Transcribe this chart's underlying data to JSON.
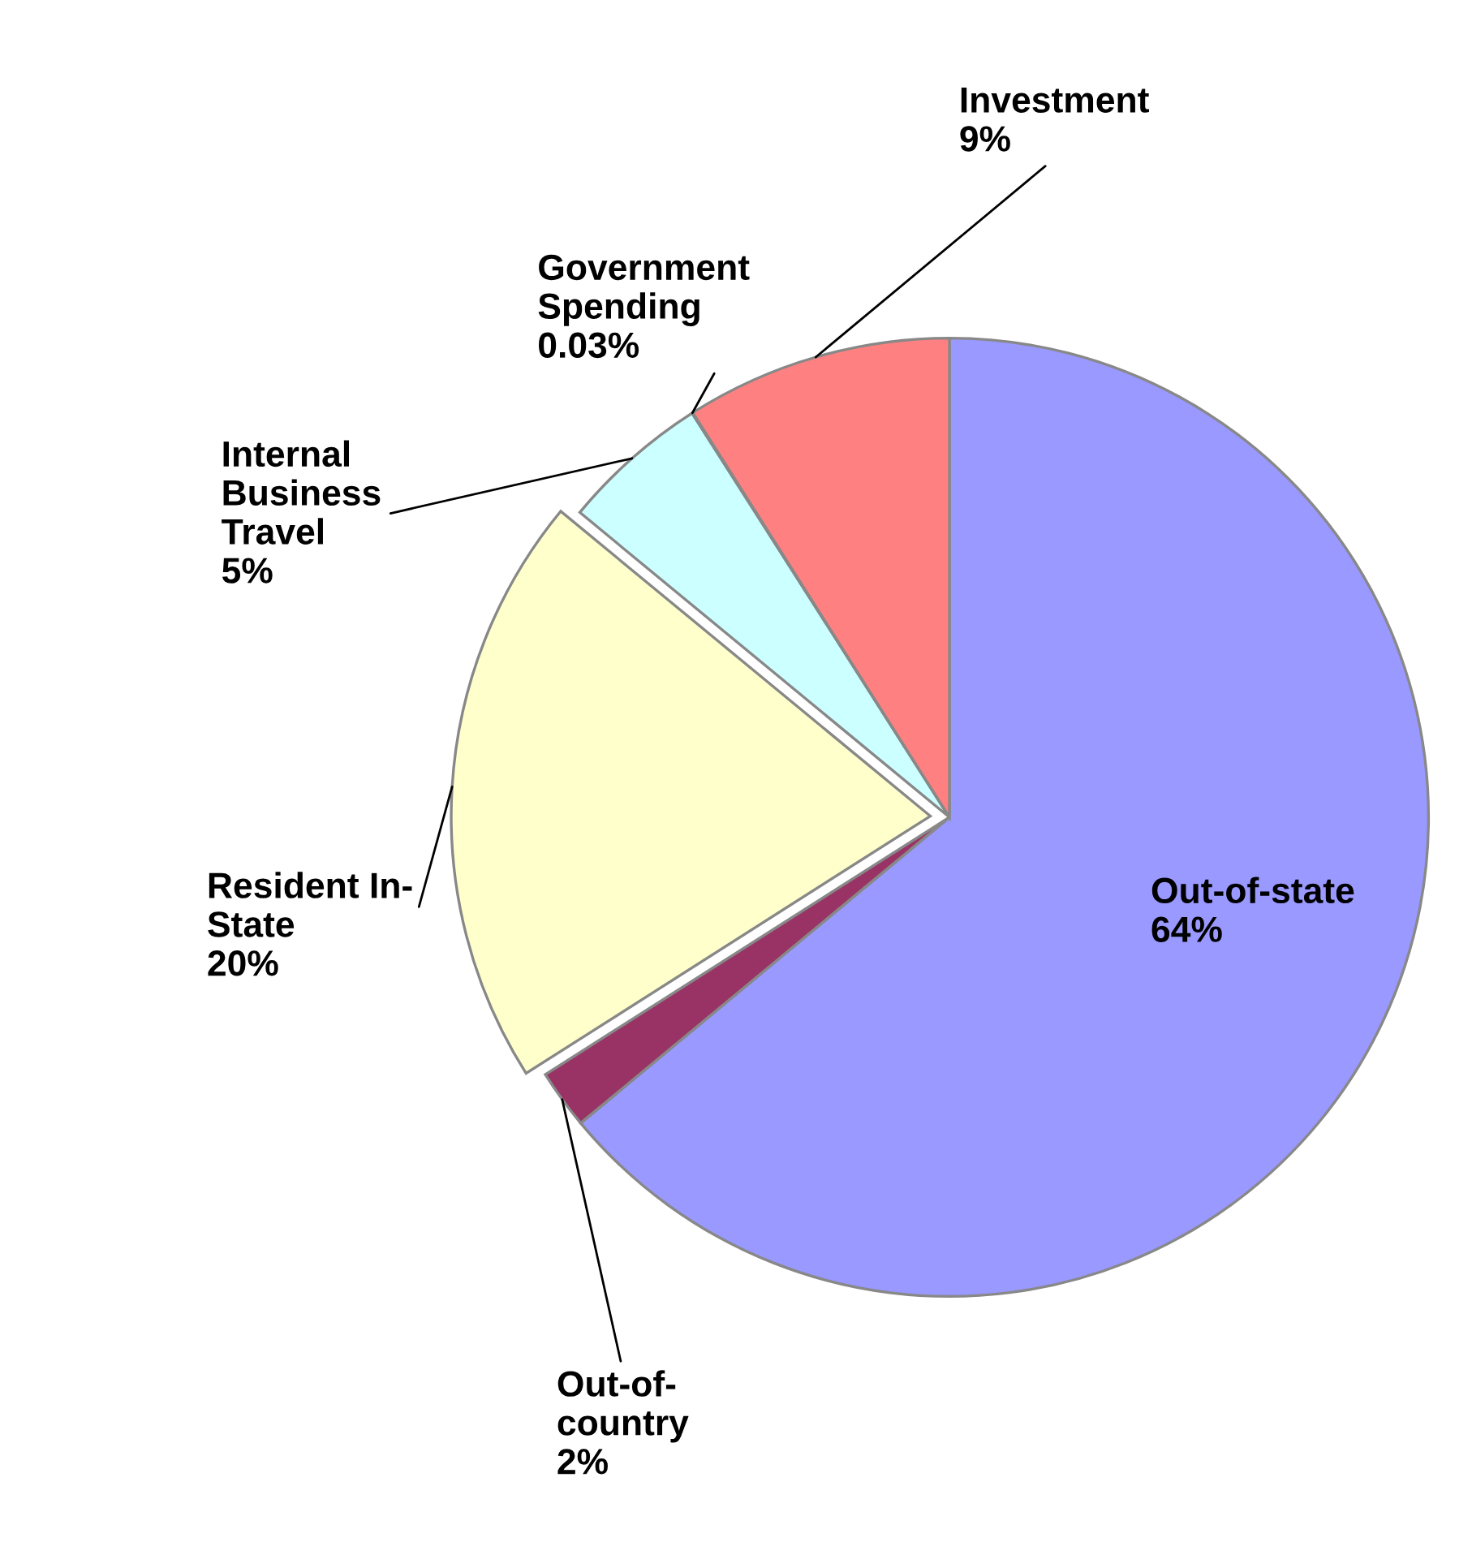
{
  "chart_data": {
    "type": "pie",
    "categories": [
      "Out-of-state",
      "Out-of-country",
      "Resident In-State",
      "Internal Business Travel",
      "Government Spending",
      "Investment"
    ],
    "values": [
      64,
      2,
      20,
      5,
      0.03,
      9
    ],
    "value_labels": [
      "64%",
      "2%",
      "20%",
      "5%",
      "0.03%",
      "9%"
    ],
    "colors": [
      "#9999ff",
      "#993366",
      "#ffffcc",
      "#ccffff",
      "#3366cc",
      "#ff8080"
    ]
  }
}
